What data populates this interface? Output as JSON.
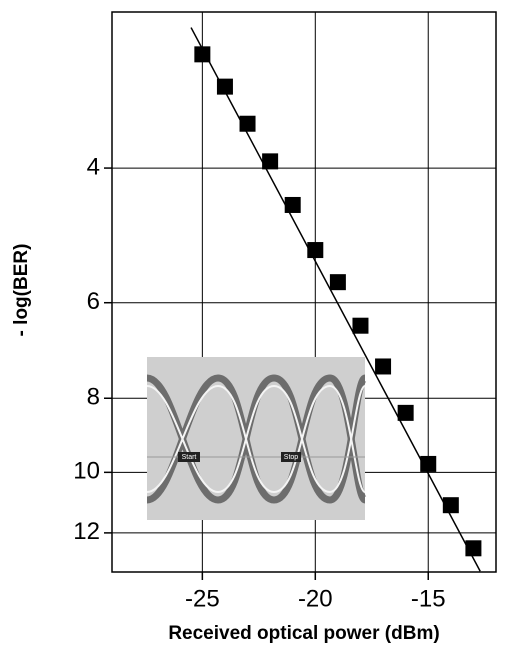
{
  "chart_data": {
    "type": "scatter",
    "xlabel": "Received optical power (dBm)",
    "ylabel": "- log(BER)",
    "xlim": [
      -29,
      -12
    ],
    "xticks": [
      -25,
      -20,
      -15
    ],
    "ylim": [
      2.5,
      13.5
    ],
    "yticks": [
      4,
      6,
      8,
      10,
      12
    ],
    "log_y": true,
    "y_inverted": true,
    "grid": true,
    "series": [
      {
        "color": "#000000",
        "marker": "square",
        "x": [
          -25,
          -24,
          -23,
          -22,
          -21,
          -20,
          -19,
          -18,
          -17,
          -16,
          -15,
          -14,
          -13
        ],
        "values": [
          2.84,
          3.13,
          3.5,
          3.92,
          4.47,
          5.12,
          5.64,
          6.43,
          7.27,
          8.36,
          9.75,
          11.04,
          12.57
        ]
      },
      {
        "color": "#000000",
        "marker": "line",
        "x": [
          -25.5,
          -12.7
        ],
        "values": [
          2.62,
          13.47
        ]
      }
    ],
    "annotations": [
      "Start",
      "Stop"
    ]
  }
}
